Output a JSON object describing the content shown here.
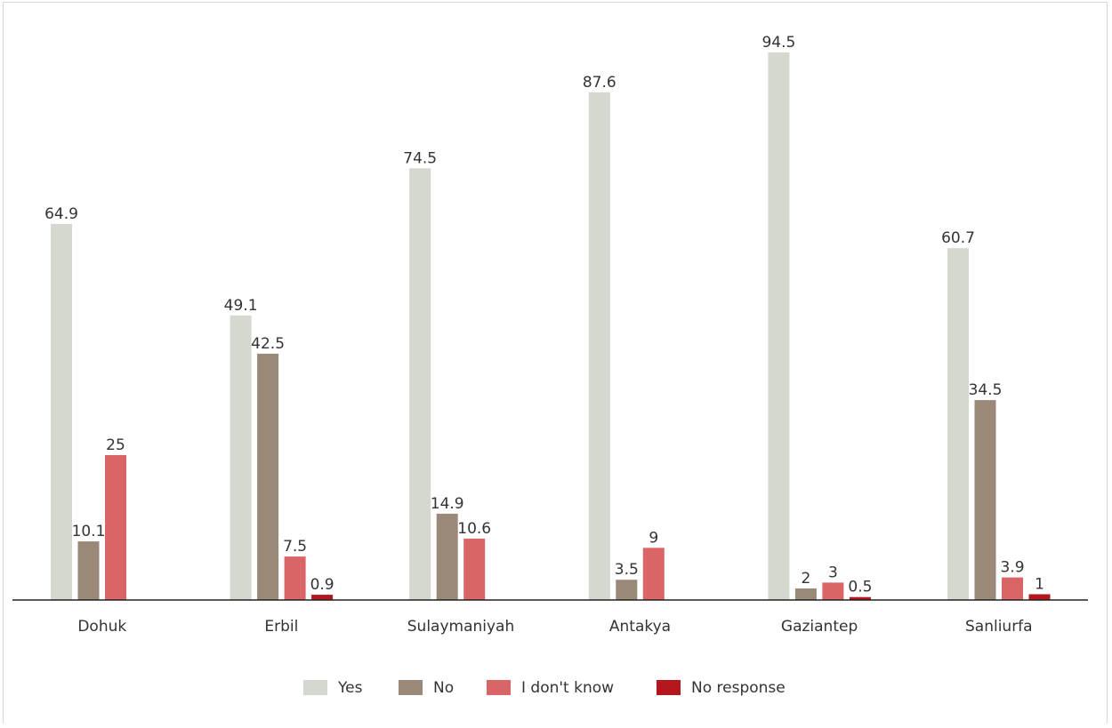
{
  "chart_data": {
    "type": "bar",
    "categories": [
      "Dohuk",
      "Erbil",
      "Sulaymaniyah",
      "Antakya",
      "Gaziantep",
      "Sanliurfa"
    ],
    "series": [
      {
        "name": "Yes",
        "color": "#d5d8cf",
        "values": [
          64.9,
          49.1,
          74.5,
          87.6,
          94.5,
          60.7
        ]
      },
      {
        "name": "No",
        "color": "#9a8878",
        "values": [
          10.1,
          42.5,
          14.9,
          3.5,
          2,
          34.5
        ]
      },
      {
        "name": "I don't know",
        "color": "#d96566",
        "values": [
          25,
          7.5,
          10.6,
          9,
          3,
          3.9
        ]
      },
      {
        "name": "No response",
        "color": "#b3161b",
        "values": [
          null,
          0.9,
          null,
          null,
          0.5,
          1
        ]
      }
    ],
    "data_labels": [
      [
        "64.9",
        "49.1",
        "74.5",
        "87.6",
        "94.5",
        "60.7"
      ],
      [
        "10.1",
        "42.5",
        "14.9",
        "3.5",
        "2",
        "34.5"
      ],
      [
        "25",
        "7.5",
        "10.6",
        "9",
        "3",
        "3.9"
      ],
      [
        "",
        "0.9",
        "",
        "",
        "0.5",
        "1"
      ]
    ],
    "ylim": [
      0,
      100
    ],
    "grid": false,
    "legend_position": "bottom-center",
    "title": "",
    "xlabel": "",
    "ylabel": ""
  }
}
